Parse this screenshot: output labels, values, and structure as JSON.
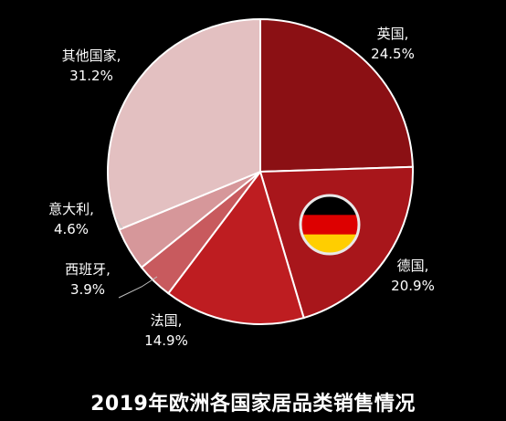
{
  "colors": {
    "background": "#000000",
    "text": "#ffffff",
    "slice_edge": "#ffffff",
    "leader_line": "#bfbfbf"
  },
  "chart_data": {
    "type": "pie",
    "title": "2019年欧洲各国家居品类销售情况",
    "slices": [
      {
        "name": "英国",
        "value": 24.5,
        "label": "24.5%",
        "color": "#8b1014"
      },
      {
        "name": "德国",
        "value": 20.9,
        "label": "20.9%",
        "color": "#a8161b",
        "icon": "germany-flag-icon"
      },
      {
        "name": "法国",
        "value": 14.9,
        "label": "14.9%",
        "color": "#be1d21"
      },
      {
        "name": "西班牙",
        "value": 3.9,
        "label": "3.9%",
        "color": "#c85a5e"
      },
      {
        "name": "意大利",
        "value": 4.6,
        "label": "4.6%",
        "color": "#d6979a"
      },
      {
        "name": "其他国家",
        "value": 31.2,
        "label": "31.2%",
        "color": "#e3c0c1"
      }
    ],
    "start_angle": "12 o'clock",
    "direction": "clockwise",
    "legend": "none",
    "data_labels": "outside"
  }
}
